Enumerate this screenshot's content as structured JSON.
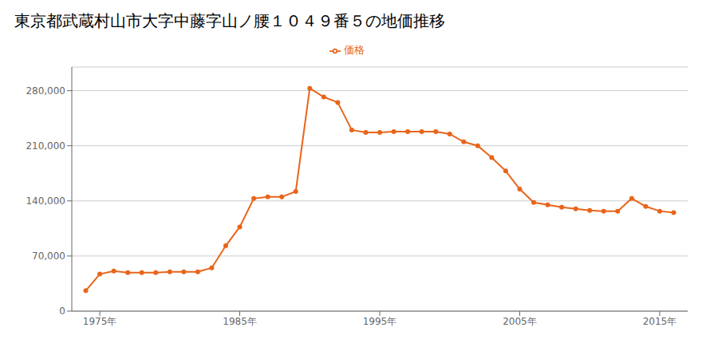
{
  "chart_data": {
    "type": "line",
    "title": "東京都武蔵村山市大字中藤字山ノ腰１０４９番５の地価推移",
    "x": [
      1974,
      1975,
      1976,
      1977,
      1978,
      1979,
      1980,
      1981,
      1982,
      1983,
      1984,
      1985,
      1986,
      1987,
      1988,
      1989,
      1990,
      1991,
      1992,
      1993,
      1994,
      1995,
      1996,
      1997,
      1998,
      1999,
      2000,
      2001,
      2002,
      2003,
      2004,
      2005,
      2006,
      2007,
      2008,
      2009,
      2010,
      2011,
      2012,
      2013,
      2014,
      2015,
      2016
    ],
    "series": [
      {
        "name": "価格",
        "color": "#E8651A",
        "marker": "circle",
        "values": [
          26000,
          47000,
          51000,
          49000,
          49000,
          49000,
          50000,
          50000,
          50000,
          55000,
          83000,
          107000,
          143000,
          145000,
          145000,
          152000,
          283000,
          272000,
          265000,
          230000,
          227000,
          227000,
          228000,
          228000,
          228000,
          228000,
          225000,
          215000,
          210000,
          195000,
          178000,
          155000,
          138000,
          135000,
          132000,
          130000,
          128000,
          127000,
          127000,
          143000,
          133000,
          127000,
          125000
        ]
      }
    ],
    "xlim": [
      1973,
      2017
    ],
    "xticks": [
      {
        "value": 1975,
        "label": "1975年"
      },
      {
        "value": 1985,
        "label": "1985年"
      },
      {
        "value": 1995,
        "label": "1995年"
      },
      {
        "value": 2005,
        "label": "2005年"
      },
      {
        "value": 2015,
        "label": "2015年"
      }
    ],
    "ylim": [
      0,
      310000
    ],
    "yticks": [
      0,
      {
        "value": 70000,
        "label": "70,000"
      },
      {
        "value": 140000,
        "label": "140,000"
      },
      {
        "value": 210000,
        "label": "210,000"
      },
      {
        "value": 280000,
        "label": "280,000"
      }
    ],
    "grid": true,
    "legend": "top"
  }
}
